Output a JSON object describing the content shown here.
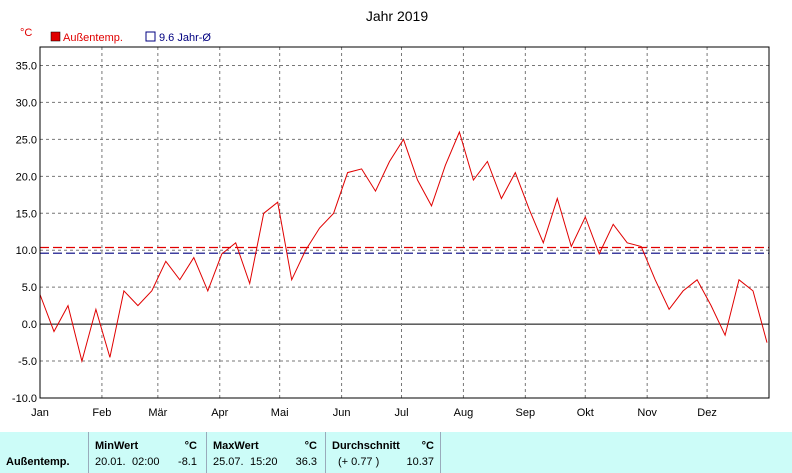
{
  "chart_data": {
    "type": "line",
    "title": "Jahr 2019",
    "ylabel": "°C",
    "ylim": [
      -10,
      37.5
    ],
    "yticks": [
      "35.0",
      "30.0",
      "25.0",
      "20.0",
      "15.0",
      "10.0",
      "5.0",
      "0.0",
      "-5.0",
      "-10.0"
    ],
    "months": [
      "Jan",
      "Feb",
      "Mär",
      "Apr",
      "Mai",
      "Jun",
      "Jul",
      "Aug",
      "Sep",
      "Okt",
      "Nov",
      "Dez"
    ],
    "grid": true,
    "legend_position": "top-left",
    "colors": {
      "temp": "#e00000",
      "avg": "#000080",
      "axis": "#000000",
      "grid": "#777777"
    },
    "legend": [
      {
        "name": "Außentemp.",
        "color": "#e00000"
      },
      {
        "name": "9.6 Jahr-Ø",
        "color": "#000080"
      }
    ],
    "reference_lines": [
      {
        "value": 9.6,
        "color": "#000080",
        "style": "dashed"
      },
      {
        "value": 10.37,
        "color": "#e00000",
        "style": "dashed"
      }
    ],
    "series": [
      {
        "name": "Außentemp.",
        "x": [
          "2019-01-01",
          "2019-01-08",
          "2019-01-15",
          "2019-01-22",
          "2019-01-29",
          "2019-02-05",
          "2019-02-12",
          "2019-02-19",
          "2019-02-26",
          "2019-03-05",
          "2019-03-12",
          "2019-03-19",
          "2019-03-26",
          "2019-04-02",
          "2019-04-09",
          "2019-04-16",
          "2019-04-23",
          "2019-04-30",
          "2019-05-07",
          "2019-05-14",
          "2019-05-21",
          "2019-05-28",
          "2019-06-04",
          "2019-06-11",
          "2019-06-18",
          "2019-06-25",
          "2019-07-02",
          "2019-07-09",
          "2019-07-16",
          "2019-07-23",
          "2019-07-30",
          "2019-08-06",
          "2019-08-13",
          "2019-08-20",
          "2019-08-27",
          "2019-09-03",
          "2019-09-10",
          "2019-09-17",
          "2019-09-24",
          "2019-10-01",
          "2019-10-08",
          "2019-10-15",
          "2019-10-22",
          "2019-10-29",
          "2019-11-05",
          "2019-11-12",
          "2019-11-19",
          "2019-11-26",
          "2019-12-03",
          "2019-12-10",
          "2019-12-17",
          "2019-12-24",
          "2019-12-31"
        ],
        "y": [
          4.0,
          -1.0,
          2.5,
          -5.0,
          2.0,
          -4.5,
          4.5,
          2.5,
          4.5,
          8.5,
          6.0,
          9.0,
          4.5,
          9.5,
          11.0,
          5.5,
          15.0,
          16.5,
          6.0,
          10.0,
          13.0,
          15.0,
          20.5,
          21.0,
          18.0,
          22.0,
          25.0,
          19.5,
          16.0,
          21.5,
          26.0,
          19.5,
          22.0,
          17.0,
          20.5,
          15.5,
          11.0,
          17.0,
          10.5,
          14.5,
          9.5,
          13.5,
          11.0,
          10.5,
          6.0,
          2.0,
          4.5,
          6.0,
          2.5,
          -1.5,
          6.0,
          4.5,
          -2.5
        ]
      }
    ]
  },
  "stats": {
    "row_label": "Außentemp.",
    "min": {
      "header": "MinWert",
      "unit": "°C",
      "date": "20.01.",
      "time": "02:00",
      "value": "-8.1"
    },
    "max": {
      "header": "MaxWert",
      "unit": "°C",
      "date": "25.07.",
      "time": "15:20",
      "value": "36.3"
    },
    "avg": {
      "header": "Durchschnitt",
      "unit": "°C",
      "delta": "(+ 0.77 )",
      "value": "10.37"
    }
  }
}
